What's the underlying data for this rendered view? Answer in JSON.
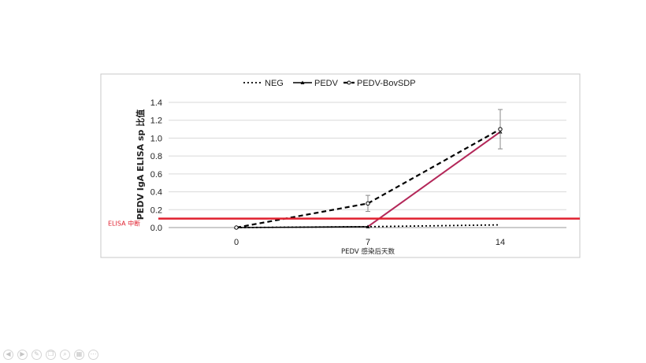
{
  "chart_data": {
    "type": "line",
    "categories": [
      "0",
      "7",
      "14"
    ],
    "ylabel": "PEDV IgA ELISA sp 比值",
    "xlabel": "PEDV 感染后天数",
    "ylim": [
      0,
      1.4
    ],
    "yticks": [
      "0.0",
      "0.2",
      "0.4",
      "0.6",
      "0.8",
      "1.0",
      "1.2",
      "1.4"
    ],
    "grid": true,
    "legend_position": "top",
    "series": [
      {
        "name": "NEG",
        "values": [
          0.0,
          0.01,
          0.03
        ],
        "style": "dotted",
        "marker": "none",
        "color": "#000000"
      },
      {
        "name": "PEDV",
        "values": [
          0.0,
          0.01,
          1.07
        ],
        "style": "solid",
        "marker": "triangle",
        "color": "#000000",
        "highlight_color": "#b5285a"
      },
      {
        "name": "PEDV-BovSDP",
        "values": [
          0.0,
          0.27,
          1.1
        ],
        "style": "dashed",
        "marker": "open-circle",
        "color": "#000000",
        "error": [
          0,
          0.09,
          0.22
        ]
      }
    ],
    "threshold": {
      "label": "ELISA 中断",
      "value": 0.1,
      "color": "#e0202f"
    }
  },
  "toolbar": {
    "icons": [
      "prev-icon",
      "play-icon",
      "pen-icon",
      "copy-icon",
      "zoom-icon",
      "grid-icon",
      "more-icon"
    ],
    "glyphs": [
      "◀",
      "▶",
      "✎",
      "❐",
      "⌕",
      "▦",
      "⋯"
    ]
  }
}
